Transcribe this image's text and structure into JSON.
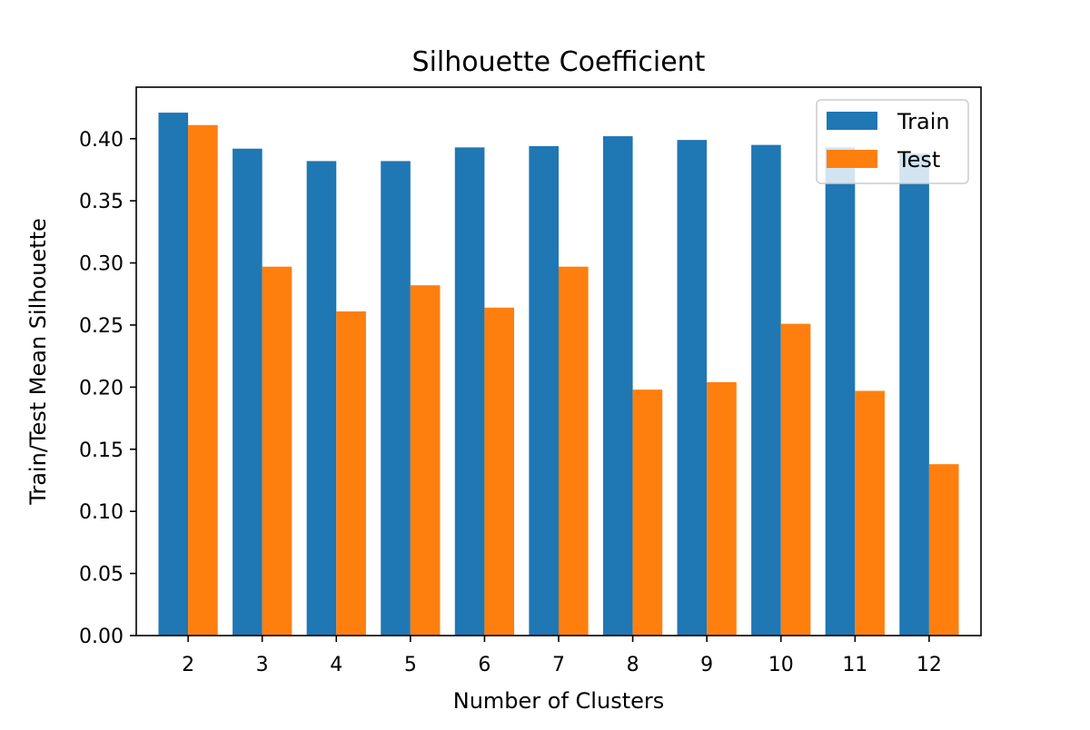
{
  "chart_data": {
    "type": "bar",
    "title": "Silhouette Coefficient",
    "xlabel": "Number of Clusters",
    "ylabel": "Train/Test Mean Silhouette",
    "categories": [
      "2",
      "3",
      "4",
      "5",
      "6",
      "7",
      "8",
      "9",
      "10",
      "11",
      "12"
    ],
    "series": [
      {
        "name": "Train",
        "color": "#1f77b4",
        "values": [
          0.421,
          0.392,
          0.382,
          0.382,
          0.393,
          0.394,
          0.402,
          0.399,
          0.395,
          0.393,
          0.388
        ]
      },
      {
        "name": "Test",
        "color": "#ff7f0e",
        "values": [
          0.411,
          0.297,
          0.261,
          0.282,
          0.264,
          0.297,
          0.198,
          0.204,
          0.251,
          0.197,
          0.138
        ]
      }
    ],
    "ylim": [
      0,
      0.4415
    ],
    "yticks": [
      "0.00",
      "0.05",
      "0.10",
      "0.15",
      "0.20",
      "0.25",
      "0.30",
      "0.35",
      "0.40"
    ],
    "legend_position": "top-right",
    "grid": false
  }
}
